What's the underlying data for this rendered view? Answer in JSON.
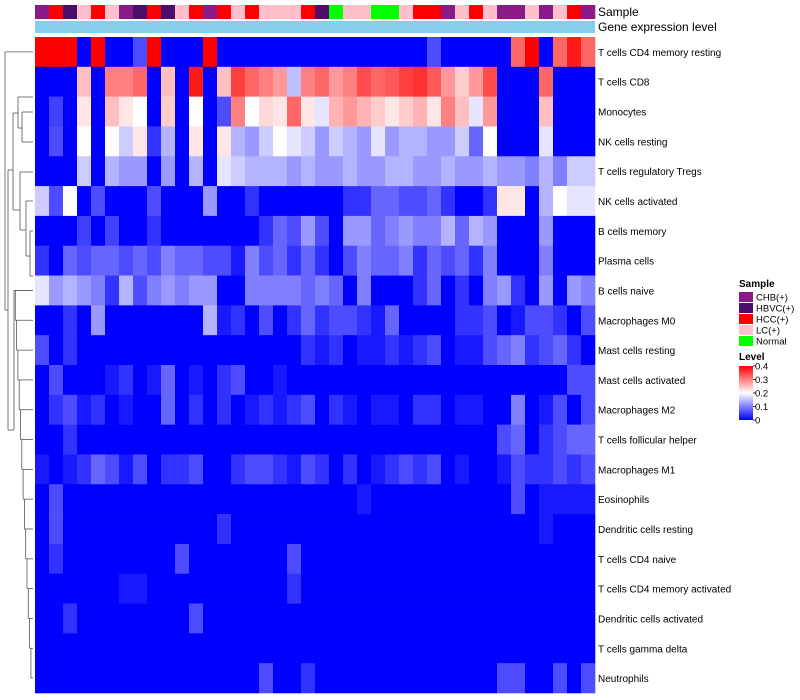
{
  "chart_data": {
    "type": "heatmap",
    "title": "",
    "annotation_tracks": [
      "Sample",
      "Gene expression level"
    ],
    "sample_legend": {
      "title": "Sample",
      "entries": [
        {
          "label": "CHB(+)",
          "color": "#8B1A89"
        },
        {
          "label": "HBVC(+)",
          "color": "#4B0F6B"
        },
        {
          "label": "HCC(+)",
          "color": "#FF0000"
        },
        {
          "label": "LC(+)",
          "color": "#FFC0CB"
        },
        {
          "label": "Normal",
          "color": "#00FF00"
        }
      ]
    },
    "level_legend": {
      "title": "Level",
      "ticks": [
        "0.4",
        "0.3",
        "0.2",
        "0.1",
        "0"
      ],
      "range": [
        0,
        0.4
      ],
      "colors": [
        "#0000FF",
        "#FFFFFF",
        "#FF0000"
      ]
    },
    "expression_bar_color": "#87CEEB",
    "samples": [
      "CHB(+)",
      "HCC(+)",
      "HBVC(+)",
      "LC(+)",
      "HCC(+)",
      "LC(+)",
      "CHB(+)",
      "HBVC(+)",
      "HCC(+)",
      "HBVC(+)",
      "LC(+)",
      "HCC(+)",
      "CHB(+)",
      "HCC(+)",
      "LC(+)",
      "HCC(+)",
      "LC(+)",
      "LC(+)",
      "LC(+)",
      "HCC(+)",
      "HBVC(+)",
      "Normal",
      "LC(+)",
      "LC(+)",
      "Normal",
      "Normal",
      "LC(+)",
      "HCC(+)",
      "HCC(+)",
      "CHB(+)",
      "LC(+)",
      "HCC(+)",
      "LC(+)",
      "CHB(+)",
      "CHB(+)",
      "LC(+)",
      "CHB(+)",
      "LC(+)",
      "HCC(+)",
      "CHB(+)"
    ],
    "rows": [
      "T cells CD4 memory resting",
      "T cells CD8",
      "Monocytes",
      "NK cells resting",
      "T cells regulatory  Tregs",
      "NK cells activated",
      "B cells memory",
      "Plasma cells",
      "B cells naive",
      "Macrophages M0",
      "Mast cells resting",
      "Mast cells activated",
      "Macrophages M2",
      "T cells follicular helper",
      "Macrophages M1",
      "Eosinophils",
      "Dendritic cells resting",
      "T cells CD4 naive",
      "T cells CD4 memory activated",
      "Dendritic cells activated",
      "T cells gamma delta",
      "Neutrophils"
    ],
    "values": [
      [
        0.4,
        0.4,
        0.4,
        0.0,
        0.4,
        0.0,
        0.0,
        0.06,
        0.4,
        0.0,
        0.0,
        0.0,
        0.4,
        0.0,
        0.0,
        0.0,
        0.0,
        0.0,
        0.0,
        0.0,
        0.0,
        0.0,
        0.0,
        0.0,
        0.0,
        0.0,
        0.0,
        0.0,
        0.06,
        0.0,
        0.0,
        0.0,
        0.0,
        0.0,
        0.32,
        0.4,
        0.0,
        0.32,
        0.38,
        0.32
      ],
      [
        0.0,
        0.0,
        0.0,
        0.25,
        0.0,
        0.3,
        0.3,
        0.32,
        0.0,
        0.25,
        0.0,
        0.38,
        0.0,
        0.25,
        0.35,
        0.32,
        0.3,
        0.28,
        0.15,
        0.3,
        0.32,
        0.28,
        0.3,
        0.34,
        0.32,
        0.33,
        0.35,
        0.36,
        0.33,
        0.28,
        0.24,
        0.28,
        0.34,
        0.0,
        0.0,
        0.0,
        0.32,
        0.0,
        0.0,
        0.0
      ],
      [
        0.0,
        0.05,
        0.0,
        0.22,
        0.0,
        0.25,
        0.22,
        0.2,
        0.0,
        0.24,
        0.0,
        0.2,
        0.0,
        0.06,
        0.3,
        0.2,
        0.23,
        0.22,
        0.32,
        0.22,
        0.18,
        0.26,
        0.28,
        0.26,
        0.24,
        0.22,
        0.24,
        0.26,
        0.22,
        0.3,
        0.25,
        0.18,
        0.28,
        0.0,
        0.0,
        0.0,
        0.25,
        0.0,
        0.0,
        0.0
      ],
      [
        0.0,
        0.06,
        0.0,
        0.2,
        0.0,
        0.2,
        0.16,
        0.22,
        0.04,
        0.14,
        0.0,
        0.22,
        0.0,
        0.22,
        0.14,
        0.12,
        0.16,
        0.2,
        0.18,
        0.16,
        0.12,
        0.16,
        0.14,
        0.12,
        0.18,
        0.12,
        0.14,
        0.14,
        0.12,
        0.12,
        0.16,
        0.08,
        0.2,
        0.0,
        0.0,
        0.0,
        0.18,
        0.0,
        0.0,
        0.0
      ],
      [
        0.0,
        0.0,
        0.0,
        0.16,
        0.0,
        0.14,
        0.12,
        0.12,
        0.0,
        0.12,
        0.0,
        0.14,
        0.0,
        0.18,
        0.16,
        0.14,
        0.14,
        0.14,
        0.12,
        0.14,
        0.12,
        0.12,
        0.14,
        0.12,
        0.12,
        0.14,
        0.14,
        0.12,
        0.12,
        0.14,
        0.12,
        0.12,
        0.14,
        0.12,
        0.12,
        0.1,
        0.14,
        0.1,
        0.16,
        0.16
      ],
      [
        0.16,
        0.06,
        0.2,
        0.0,
        0.06,
        0.0,
        0.0,
        0.0,
        0.06,
        0.0,
        0.0,
        0.0,
        0.12,
        0.0,
        0.0,
        0.04,
        0.0,
        0.0,
        0.0,
        0.0,
        0.0,
        0.0,
        0.04,
        0.04,
        0.08,
        0.08,
        0.06,
        0.06,
        0.08,
        0.04,
        0.0,
        0.0,
        0.04,
        0.22,
        0.22,
        0.0,
        0.14,
        0.2,
        0.18,
        0.18
      ],
      [
        0.0,
        0.0,
        0.0,
        0.05,
        0.0,
        0.05,
        0.0,
        0.0,
        0.04,
        0.0,
        0.0,
        0.0,
        0.0,
        0.0,
        0.0,
        0.0,
        0.04,
        0.08,
        0.06,
        0.12,
        0.06,
        0.0,
        0.12,
        0.12,
        0.08,
        0.1,
        0.12,
        0.1,
        0.1,
        0.14,
        0.08,
        0.14,
        0.12,
        0.0,
        0.0,
        0.0,
        0.12,
        0.0,
        0.0,
        0.0
      ],
      [
        0.04,
        0.0,
        0.08,
        0.06,
        0.08,
        0.08,
        0.06,
        0.08,
        0.06,
        0.1,
        0.08,
        0.08,
        0.06,
        0.06,
        0.02,
        0.1,
        0.06,
        0.08,
        0.04,
        0.08,
        0.04,
        0.0,
        0.06,
        0.1,
        0.08,
        0.08,
        0.1,
        0.04,
        0.08,
        0.06,
        0.08,
        0.04,
        0.1,
        0.0,
        0.0,
        0.0,
        0.1,
        0.0,
        0.0,
        0.0
      ],
      [
        0.18,
        0.12,
        0.14,
        0.12,
        0.1,
        0.04,
        0.14,
        0.06,
        0.1,
        0.12,
        0.1,
        0.12,
        0.12,
        0.0,
        0.0,
        0.1,
        0.1,
        0.1,
        0.1,
        0.08,
        0.1,
        0.08,
        0.0,
        0.1,
        0.0,
        0.0,
        0.0,
        0.04,
        0.08,
        0.0,
        0.04,
        0.0,
        0.1,
        0.12,
        0.04,
        0.0,
        0.12,
        0.0,
        0.12,
        0.1
      ],
      [
        0.0,
        0.0,
        0.04,
        0.0,
        0.12,
        0.0,
        0.0,
        0.0,
        0.0,
        0.0,
        0.0,
        0.0,
        0.14,
        0.02,
        0.04,
        0.0,
        0.06,
        0.0,
        0.04,
        0.08,
        0.04,
        0.06,
        0.06,
        0.04,
        0.02,
        0.08,
        0.0,
        0.0,
        0.0,
        0.0,
        0.04,
        0.04,
        0.06,
        0.0,
        0.02,
        0.06,
        0.06,
        0.04,
        0.0,
        0.06
      ],
      [
        0.06,
        0.0,
        0.04,
        0.0,
        0.0,
        0.0,
        0.0,
        0.0,
        0.0,
        0.0,
        0.0,
        0.0,
        0.0,
        0.0,
        0.0,
        0.0,
        0.0,
        0.0,
        0.0,
        0.04,
        0.02,
        0.04,
        0.0,
        0.02,
        0.02,
        0.04,
        0.02,
        0.04,
        0.06,
        0.0,
        0.02,
        0.02,
        0.06,
        0.08,
        0.1,
        0.04,
        0.06,
        0.08,
        0.04,
        0.0
      ],
      [
        0.0,
        0.06,
        0.0,
        0.0,
        0.0,
        0.02,
        0.04,
        0.0,
        0.02,
        0.08,
        0.0,
        0.02,
        0.0,
        0.04,
        0.06,
        0.0,
        0.0,
        0.02,
        0.0,
        0.0,
        0.0,
        0.0,
        0.0,
        0.0,
        0.0,
        0.0,
        0.0,
        0.0,
        0.0,
        0.0,
        0.0,
        0.0,
        0.0,
        0.0,
        0.0,
        0.0,
        0.0,
        0.0,
        0.06,
        0.06
      ],
      [
        0.0,
        0.04,
        0.06,
        0.02,
        0.04,
        0.0,
        0.02,
        0.0,
        0.0,
        0.08,
        0.0,
        0.04,
        0.0,
        0.04,
        0.0,
        0.02,
        0.04,
        0.02,
        0.04,
        0.06,
        0.0,
        0.04,
        0.02,
        0.0,
        0.02,
        0.02,
        0.0,
        0.04,
        0.04,
        0.0,
        0.02,
        0.02,
        0.0,
        0.0,
        0.1,
        0.0,
        0.02,
        0.06,
        0.0,
        0.06
      ],
      [
        0.0,
        0.0,
        0.04,
        0.0,
        0.0,
        0.0,
        0.0,
        0.0,
        0.0,
        0.0,
        0.0,
        0.0,
        0.0,
        0.0,
        0.0,
        0.0,
        0.0,
        0.0,
        0.0,
        0.0,
        0.0,
        0.0,
        0.0,
        0.0,
        0.0,
        0.0,
        0.0,
        0.0,
        0.0,
        0.0,
        0.0,
        0.0,
        0.0,
        0.06,
        0.08,
        0.0,
        0.04,
        0.06,
        0.08,
        0.08
      ],
      [
        0.02,
        0.0,
        0.02,
        0.04,
        0.08,
        0.06,
        0.02,
        0.06,
        0.0,
        0.04,
        0.04,
        0.06,
        0.0,
        0.0,
        0.04,
        0.06,
        0.06,
        0.04,
        0.02,
        0.06,
        0.04,
        0.0,
        0.04,
        0.0,
        0.02,
        0.04,
        0.06,
        0.04,
        0.06,
        0.0,
        0.02,
        0.0,
        0.0,
        0.02,
        0.06,
        0.04,
        0.04,
        0.06,
        0.04,
        0.06
      ],
      [
        0.0,
        0.06,
        0.0,
        0.0,
        0.0,
        0.0,
        0.0,
        0.0,
        0.0,
        0.0,
        0.0,
        0.0,
        0.0,
        0.0,
        0.0,
        0.0,
        0.0,
        0.0,
        0.0,
        0.0,
        0.0,
        0.0,
        0.0,
        0.02,
        0.0,
        0.0,
        0.0,
        0.0,
        0.0,
        0.0,
        0.0,
        0.0,
        0.0,
        0.0,
        0.06,
        0.0,
        0.02,
        0.02,
        0.02,
        0.02
      ],
      [
        0.0,
        0.06,
        0.0,
        0.0,
        0.0,
        0.0,
        0.0,
        0.0,
        0.0,
        0.0,
        0.0,
        0.0,
        0.0,
        0.04,
        0.0,
        0.0,
        0.0,
        0.0,
        0.0,
        0.0,
        0.0,
        0.0,
        0.0,
        0.0,
        0.0,
        0.0,
        0.0,
        0.0,
        0.0,
        0.0,
        0.0,
        0.0,
        0.0,
        0.0,
        0.0,
        0.0,
        0.02,
        0.0,
        0.0,
        0.0
      ],
      [
        0.0,
        0.04,
        0.0,
        0.0,
        0.0,
        0.0,
        0.0,
        0.0,
        0.0,
        0.0,
        0.06,
        0.0,
        0.0,
        0.0,
        0.0,
        0.0,
        0.0,
        0.0,
        0.06,
        0.0,
        0.0,
        0.0,
        0.0,
        0.0,
        0.0,
        0.0,
        0.0,
        0.0,
        0.0,
        0.0,
        0.0,
        0.0,
        0.0,
        0.0,
        0.0,
        0.0,
        0.0,
        0.0,
        0.0,
        0.0
      ],
      [
        0.0,
        0.0,
        0.0,
        0.0,
        0.0,
        0.0,
        0.02,
        0.02,
        0.0,
        0.0,
        0.0,
        0.0,
        0.0,
        0.0,
        0.0,
        0.0,
        0.0,
        0.0,
        0.04,
        0.0,
        0.0,
        0.0,
        0.0,
        0.0,
        0.0,
        0.0,
        0.0,
        0.0,
        0.0,
        0.0,
        0.0,
        0.0,
        0.0,
        0.0,
        0.0,
        0.0,
        0.0,
        0.0,
        0.0,
        0.0
      ],
      [
        0.0,
        0.0,
        0.04,
        0.0,
        0.0,
        0.0,
        0.0,
        0.0,
        0.0,
        0.0,
        0.0,
        0.06,
        0.0,
        0.0,
        0.0,
        0.0,
        0.0,
        0.0,
        0.0,
        0.0,
        0.0,
        0.0,
        0.0,
        0.0,
        0.0,
        0.0,
        0.0,
        0.0,
        0.0,
        0.0,
        0.0,
        0.0,
        0.0,
        0.0,
        0.0,
        0.0,
        0.0,
        0.0,
        0.0,
        0.0
      ],
      [
        0.0,
        0.0,
        0.0,
        0.0,
        0.0,
        0.0,
        0.0,
        0.0,
        0.0,
        0.0,
        0.0,
        0.0,
        0.0,
        0.0,
        0.0,
        0.0,
        0.0,
        0.0,
        0.0,
        0.0,
        0.0,
        0.0,
        0.0,
        0.0,
        0.0,
        0.0,
        0.0,
        0.0,
        0.0,
        0.0,
        0.0,
        0.0,
        0.0,
        0.0,
        0.0,
        0.0,
        0.0,
        0.0,
        0.0,
        0.0
      ],
      [
        0.0,
        0.0,
        0.0,
        0.0,
        0.0,
        0.0,
        0.0,
        0.0,
        0.0,
        0.0,
        0.0,
        0.0,
        0.0,
        0.0,
        0.0,
        0.0,
        0.06,
        0.0,
        0.0,
        0.04,
        0.0,
        0.0,
        0.0,
        0.0,
        0.0,
        0.0,
        0.0,
        0.0,
        0.0,
        0.0,
        0.0,
        0.0,
        0.0,
        0.06,
        0.06,
        0.0,
        0.0,
        0.06,
        0.0,
        0.06
      ]
    ]
  }
}
